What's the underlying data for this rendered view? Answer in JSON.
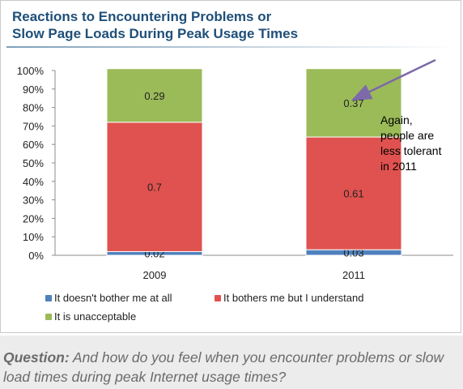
{
  "title_line1": "Reactions to Encountering Problems or",
  "title_line2": "Slow Page Loads During Peak Usage Times",
  "annotation": {
    "line1": "Again,",
    "line2": "people are",
    "line3": "less tolerant",
    "line4": "in 2011"
  },
  "question_label": "Question:",
  "question_text": "And how do you feel when you encounter problems or slow load times during peak Internet usage times?",
  "chart_data": {
    "type": "bar",
    "stacked": true,
    "categories": [
      "2009",
      "2011"
    ],
    "series": [
      {
        "name": "It doesn't bother me at all",
        "values": [
          0.02,
          0.03
        ],
        "labels": [
          "0.02",
          "0.03"
        ],
        "color": "#4f81bd"
      },
      {
        "name": "It bothers me but I understand",
        "values": [
          0.7,
          0.61
        ],
        "labels": [
          "0.7",
          "0.61"
        ],
        "color": "#e0524f"
      },
      {
        "name": "It is unacceptable",
        "values": [
          0.29,
          0.37
        ],
        "labels": [
          "0.29",
          "0.37"
        ],
        "color": "#9bbb59"
      }
    ],
    "y_ticks": [
      "0%",
      "10%",
      "20%",
      "30%",
      "40%",
      "50%",
      "60%",
      "70%",
      "80%",
      "90%",
      "100%"
    ],
    "ylim": [
      0,
      1
    ],
    "grid": false,
    "legend_position": "bottom"
  }
}
